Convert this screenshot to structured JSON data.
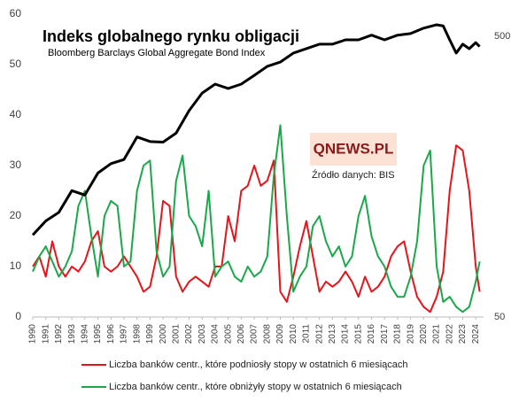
{
  "chart_data": {
    "type": "line",
    "title": "Indeks globalnego rynku obligacji",
    "subtitle": "Bloomberg Barclays Global Aggregate Bond Index",
    "logo": "QNEWS.PL",
    "source": "Źródło danych: BIS",
    "xlim": [
      1990,
      2024.6
    ],
    "xticks": [
      1990,
      1991,
      1992,
      1993,
      1994,
      1995,
      1996,
      1997,
      1998,
      1999,
      2000,
      2001,
      2002,
      2003,
      2004,
      2005,
      2006,
      2007,
      2008,
      2009,
      2010,
      2011,
      2012,
      2013,
      2014,
      2015,
      2016,
      2017,
      2018,
      2019,
      2020,
      2021,
      2022,
      2023,
      2024
    ],
    "ylim": [
      0,
      60
    ],
    "yticks": [
      0,
      10,
      20,
      30,
      40,
      50,
      60
    ],
    "y2lim": [
      50,
      600
    ],
    "y2ticks": [
      50,
      500
    ],
    "y2log": true,
    "series": [
      {
        "name": "Liczba banków centr., które podniosły stopy w ostatnich 6 miesiącach",
        "color": "#e8141b",
        "x": [
          1990,
          1990.5,
          1991,
          1991.5,
          1992,
          1992.5,
          1993,
          1993.5,
          1994,
          1994.5,
          1995,
          1995.5,
          1996,
          1996.5,
          1997,
          1997.5,
          1998,
          1998.5,
          1999,
          1999.5,
          2000,
          2000.5,
          2001,
          2001.5,
          2002,
          2002.5,
          2003,
          2003.5,
          2004,
          2004.5,
          2005,
          2005.5,
          2006,
          2006.5,
          2007,
          2007.5,
          2008,
          2008.5,
          2009,
          2009.5,
          2010,
          2010.5,
          2011,
          2011.5,
          2012,
          2012.5,
          2013,
          2013.5,
          2014,
          2014.5,
          2015,
          2015.5,
          2016,
          2016.5,
          2017,
          2017.5,
          2018,
          2018.5,
          2019,
          2019.5,
          2020,
          2020.5,
          2021,
          2021.5,
          2022,
          2022.5,
          2023,
          2023.5,
          2024,
          2024.3
        ],
        "values": [
          10,
          12,
          8,
          15,
          10,
          8,
          10,
          9,
          11,
          15,
          17,
          10,
          9,
          10,
          12,
          10,
          8,
          5,
          6,
          12,
          23,
          22,
          8,
          5,
          7,
          8,
          7,
          6,
          10,
          10,
          20,
          15,
          25,
          26,
          30,
          26,
          27,
          31,
          5,
          3,
          8,
          14,
          19,
          12,
          5,
          7,
          6,
          7,
          9,
          7,
          4,
          8,
          5,
          6,
          8,
          12,
          14,
          15,
          9,
          4,
          2,
          1,
          4,
          9,
          25,
          34,
          33,
          25,
          10,
          5
        ]
      },
      {
        "name": "Liczba banków centr., które obniżyły stopy w ostatnich 6 miesiącach",
        "color": "#1aa84a",
        "x": [
          1990,
          1990.5,
          1991,
          1991.5,
          1992,
          1992.5,
          1993,
          1993.5,
          1994,
          1994.5,
          1995,
          1995.5,
          1996,
          1996.5,
          1997,
          1997.5,
          1998,
          1998.5,
          1999,
          1999.5,
          2000,
          2000.5,
          2001,
          2001.5,
          2002,
          2002.5,
          2003,
          2003.5,
          2004,
          2004.5,
          2005,
          2005.5,
          2006,
          2006.5,
          2007,
          2007.5,
          2008,
          2008.5,
          2009,
          2009.5,
          2010,
          2010.5,
          2011,
          2011.5,
          2012,
          2012.5,
          2013,
          2013.5,
          2014,
          2014.5,
          2015,
          2015.5,
          2016,
          2016.5,
          2017,
          2017.5,
          2018,
          2018.5,
          2019,
          2019.5,
          2020,
          2020.5,
          2021,
          2021.5,
          2022,
          2022.5,
          2023,
          2023.5,
          2024,
          2024.3
        ],
        "values": [
          9,
          12,
          14,
          11,
          8,
          10,
          13,
          22,
          25,
          16,
          8,
          20,
          23,
          22,
          10,
          11,
          25,
          30,
          31,
          13,
          8,
          10,
          27,
          32,
          20,
          18,
          14,
          25,
          8,
          10,
          11,
          8,
          7,
          10,
          8,
          9,
          12,
          28,
          38,
          20,
          5,
          8,
          10,
          18,
          20,
          15,
          12,
          14,
          10,
          12,
          20,
          24,
          16,
          12,
          10,
          6,
          4,
          4,
          8,
          15,
          30,
          33,
          10,
          3,
          4,
          2,
          1,
          2,
          7,
          11
        ]
      },
      {
        "name": "Bloomberg Barclays Global Aggregate Bond Index",
        "color": "#000000",
        "axis": "y2",
        "x": [
          1990,
          1991,
          1992,
          1993,
          1994,
          1995,
          1996,
          1997,
          1998,
          1999,
          2000,
          2001,
          2002,
          2003,
          2004,
          2005,
          2006,
          2007,
          2008,
          2009,
          2010,
          2011,
          2012,
          2013,
          2014,
          2015,
          2016,
          2017,
          2018,
          2019,
          2020,
          2021,
          2021.5,
          2022,
          2022.5,
          2023,
          2023.5,
          2024,
          2024.3
        ],
        "values": [
          98,
          110,
          118,
          141,
          136,
          163,
          176,
          182,
          219,
          211,
          210,
          226,
          272,
          314,
          338,
          326,
          338,
          363,
          391,
          405,
          436,
          452,
          469,
          469,
          486,
          486,
          505,
          486,
          505,
          512,
          535,
          550,
          545,
          486,
          436,
          469,
          452,
          475,
          460
        ]
      }
    ]
  }
}
